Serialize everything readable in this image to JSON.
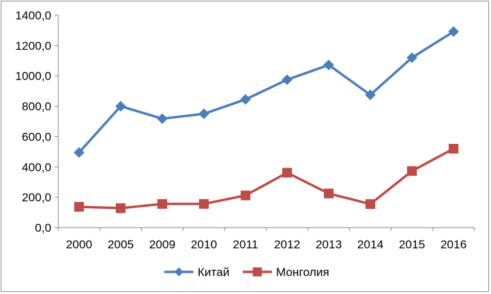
{
  "chart_data": {
    "type": "line",
    "title": "",
    "xlabel": "",
    "ylabel": "",
    "categories": [
      "2000",
      "2005",
      "2009",
      "2010",
      "2011",
      "2012",
      "2013",
      "2014",
      "2015",
      "2016"
    ],
    "ylim": [
      0,
      1400
    ],
    "yticks": [
      0,
      200,
      400,
      600,
      800,
      1000,
      1200,
      1400
    ],
    "ytick_labels": [
      "0,0",
      "200,0",
      "400,0",
      "600,0",
      "800,0",
      "1000,0",
      "1200,0",
      "1400,0"
    ],
    "grid": false,
    "legend_position": "bottom",
    "series": [
      {
        "name": "Китай",
        "color": "#4a7ebb",
        "marker": "diamond",
        "values": [
          495,
          800,
          718,
          750,
          845,
          975,
          1072,
          875,
          1120,
          1292
        ]
      },
      {
        "name": "Монголия",
        "color": "#be4b48",
        "marker": "square",
        "values": [
          137,
          128,
          156,
          156,
          212,
          362,
          225,
          155,
          373,
          520
        ]
      }
    ]
  }
}
